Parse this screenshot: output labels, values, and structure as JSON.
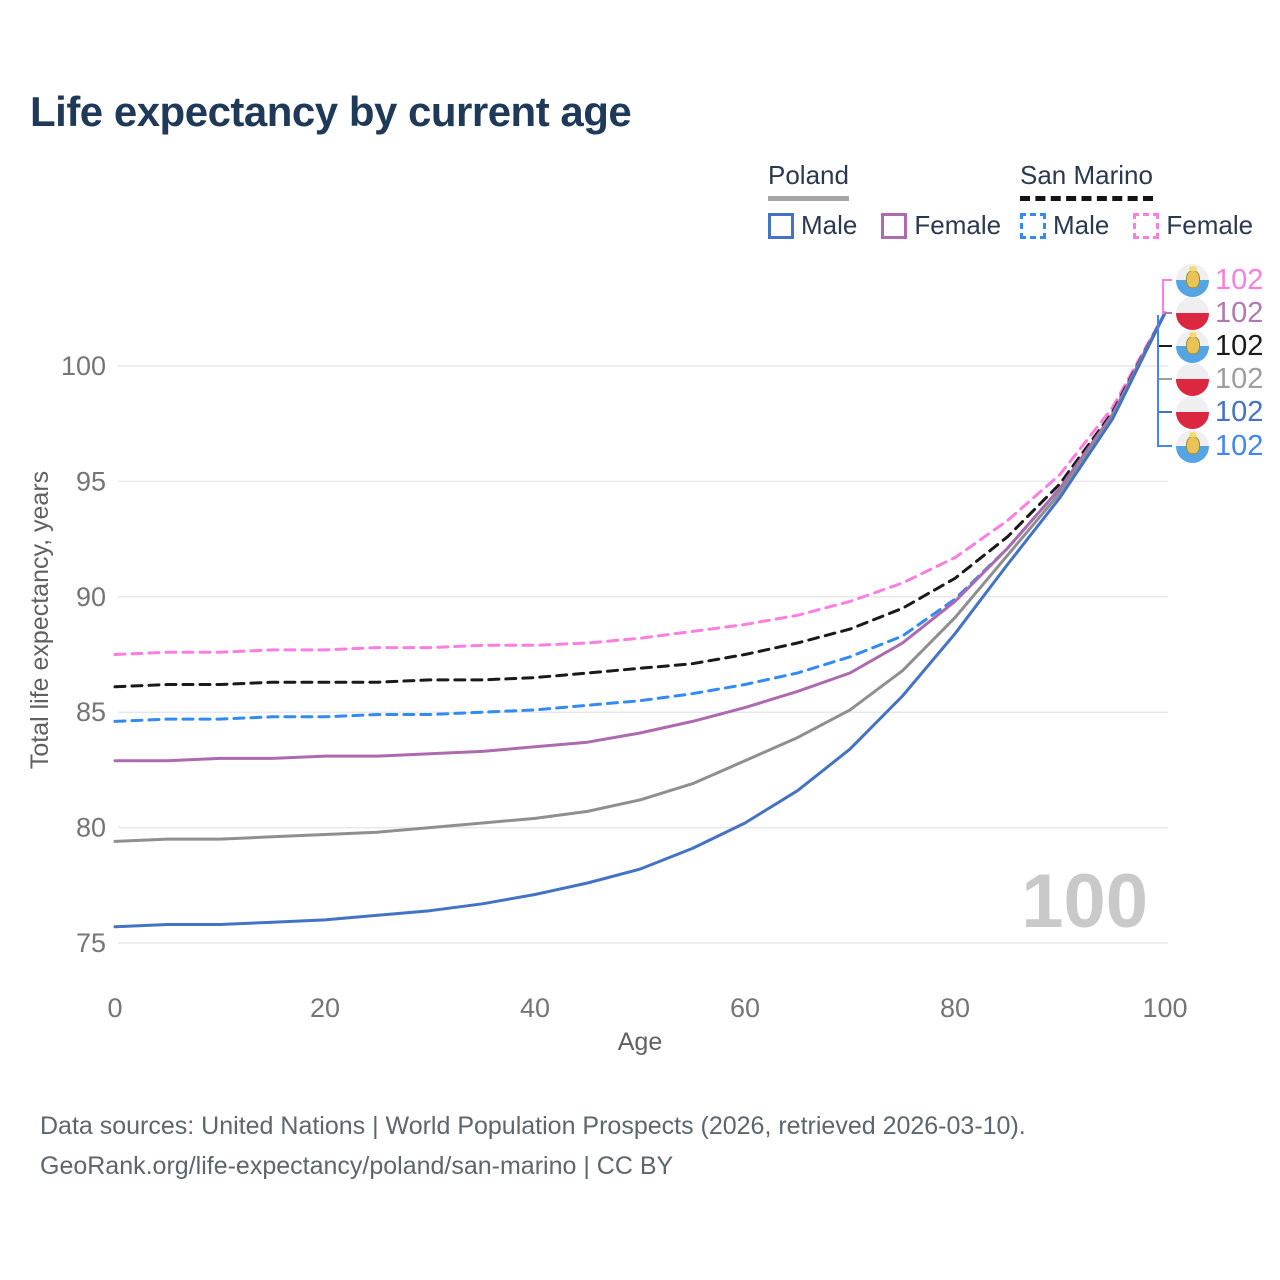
{
  "title": "Life expectancy by current age",
  "watermark": "100",
  "legend": {
    "groups": [
      {
        "country": "Poland",
        "line_style": "solid",
        "underline_color": "#a6a6a6",
        "items": [
          {
            "label": "Male",
            "color": "#4472c4"
          },
          {
            "label": "Female",
            "color": "#ad6aae"
          }
        ]
      },
      {
        "country": "San Marino",
        "line_style": "dashed",
        "underline_color": "#141414",
        "items": [
          {
            "label": "Male",
            "color": "#338af3"
          },
          {
            "label": "Female",
            "color": "#fc7ee0"
          }
        ]
      }
    ]
  },
  "chart_data": {
    "type": "line",
    "title": "Life expectancy by current age",
    "xlabel": "Age",
    "ylabel": "Total life expectancy, years",
    "xlim": [
      0,
      100
    ],
    "ylim": [
      74,
      103
    ],
    "x_ticks": [
      0,
      20,
      40,
      60,
      80,
      100
    ],
    "y_ticks": [
      75,
      80,
      85,
      90,
      95,
      100
    ],
    "grid": true,
    "legend_position": "top-right",
    "x": [
      0,
      5,
      10,
      15,
      20,
      25,
      30,
      35,
      40,
      45,
      50,
      55,
      60,
      65,
      70,
      75,
      80,
      85,
      90,
      95,
      100
    ],
    "series": [
      {
        "name": "San Marino Female",
        "country": "San Marino",
        "sex": "Female",
        "style": "dashed",
        "color": "#fc7ee0",
        "values": [
          87.5,
          87.6,
          87.6,
          87.7,
          87.7,
          87.8,
          87.8,
          87.9,
          87.9,
          88.0,
          88.2,
          88.5,
          88.8,
          89.2,
          89.8,
          90.6,
          91.7,
          93.3,
          95.3,
          98.2,
          102.3
        ]
      },
      {
        "name": "San Marino Both sexes",
        "country": "San Marino",
        "sex": "Both",
        "style": "dashed",
        "color": "#1a1a1a",
        "values": [
          86.1,
          86.2,
          86.2,
          86.3,
          86.3,
          86.3,
          86.4,
          86.4,
          86.5,
          86.7,
          86.9,
          87.1,
          87.5,
          88.0,
          88.6,
          89.5,
          90.8,
          92.6,
          94.9,
          98.0,
          102.3
        ]
      },
      {
        "name": "San Marino Male",
        "country": "San Marino",
        "sex": "Male",
        "style": "dashed",
        "color": "#338af3",
        "values": [
          84.6,
          84.7,
          84.7,
          84.8,
          84.8,
          84.9,
          84.9,
          85.0,
          85.1,
          85.3,
          85.5,
          85.8,
          86.2,
          86.7,
          87.4,
          88.3,
          89.9,
          92.1,
          94.7,
          97.9,
          102.3
        ]
      },
      {
        "name": "Poland Female",
        "country": "Poland",
        "sex": "Female",
        "style": "solid",
        "color": "#ad6aae",
        "values": [
          82.9,
          82.9,
          83.0,
          83.0,
          83.1,
          83.1,
          83.2,
          83.3,
          83.5,
          83.7,
          84.1,
          84.6,
          85.2,
          85.9,
          86.7,
          88.0,
          89.8,
          92.1,
          94.7,
          97.9,
          102.3
        ]
      },
      {
        "name": "Poland Both sexes",
        "country": "Poland",
        "sex": "Both",
        "style": "solid",
        "color": "#8f8f8f",
        "values": [
          79.4,
          79.5,
          79.5,
          79.6,
          79.7,
          79.8,
          80.0,
          80.2,
          80.4,
          80.7,
          81.2,
          81.9,
          82.9,
          83.9,
          85.1,
          86.8,
          89.1,
          91.8,
          94.5,
          97.8,
          102.3
        ]
      },
      {
        "name": "Poland Male",
        "country": "Poland",
        "sex": "Male",
        "style": "solid",
        "color": "#4472c4",
        "values": [
          75.7,
          75.8,
          75.8,
          75.9,
          76.0,
          76.2,
          76.4,
          76.7,
          77.1,
          77.6,
          78.2,
          79.1,
          80.2,
          81.6,
          83.4,
          85.7,
          88.4,
          91.4,
          94.3,
          97.7,
          102.3
        ]
      }
    ],
    "end_labels": [
      {
        "flag": "san-marino",
        "value": "102",
        "color": "#fc7ee0"
      },
      {
        "flag": "poland",
        "value": "102",
        "color": "#b07ab0"
      },
      {
        "flag": "san-marino",
        "value": "102",
        "color": "#1a1a1a"
      },
      {
        "flag": "poland",
        "value": "102",
        "color": "#9e9e9e"
      },
      {
        "flag": "poland",
        "value": "102",
        "color": "#4472c4"
      },
      {
        "flag": "san-marino",
        "value": "102",
        "color": "#4285f4"
      }
    ],
    "annotation": "100"
  },
  "footer": {
    "line1": "Data sources: United Nations | World Population Prospects (2026, retrieved 2026-03-10).",
    "line2": "GeoRank.org/life-expectancy/poland/san-marino | CC BY"
  }
}
